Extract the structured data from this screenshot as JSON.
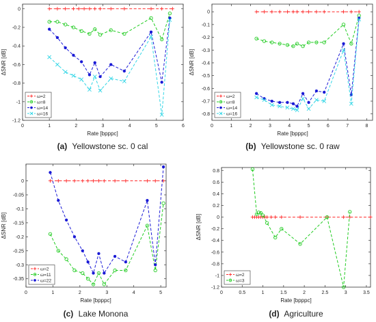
{
  "panels": [
    {
      "caption_label": "(a)",
      "caption_text": "Yellowstone sc. 0 cal",
      "chart_data": {
        "type": "line",
        "xlabel": "Rate [bpppc]",
        "ylabel": "ΔSNR [dB]",
        "xlim": [
          0,
          6
        ],
        "ylim": [
          -1.2,
          0.05
        ],
        "xticks": [
          0,
          1,
          2,
          3,
          4,
          5,
          6
        ],
        "yticks": [
          0,
          -0.2,
          -0.4,
          -0.6,
          -0.8,
          -1,
          -1.2
        ],
        "xtick_labels": [
          "0",
          "1",
          "2",
          "3",
          "4",
          "5",
          "6"
        ],
        "ytick_labels": [
          "0",
          "-0.2",
          "-0.4",
          "-0.6",
          "-0.8",
          "-1",
          "-1.2"
        ],
        "legend_position": "bottom-left",
        "series": [
          {
            "name": "ω=2",
            "color": "#ff2a2a",
            "marker": "plus",
            "x": [
              1.0,
              1.3,
              1.6,
              1.9,
              2.1,
              2.3,
              2.5,
              2.7,
              2.9,
              3.3,
              3.8,
              4.8,
              5.2,
              5.6
            ],
            "y": [
              0,
              0,
              0,
              0,
              0,
              0,
              0,
              0,
              0,
              0,
              0,
              0,
              0,
              0
            ]
          },
          {
            "name": "ω=8",
            "color": "#22cc22",
            "marker": "circle",
            "x": [
              1.0,
              1.3,
              1.6,
              1.9,
              2.2,
              2.5,
              2.7,
              2.9,
              3.3,
              3.8,
              4.8,
              5.2,
              5.5
            ],
            "y": [
              -0.14,
              -0.14,
              -0.17,
              -0.2,
              -0.24,
              -0.27,
              -0.22,
              -0.28,
              -0.23,
              -0.27,
              -0.1,
              -0.33,
              -0.05
            ]
          },
          {
            "name": "ω=14",
            "color": "#1a1ad6",
            "marker": "asterisk",
            "x": [
              1.0,
              1.3,
              1.6,
              1.9,
              2.2,
              2.5,
              2.7,
              2.9,
              3.3,
              3.8,
              4.8,
              5.2,
              5.5
            ],
            "y": [
              -0.22,
              -0.31,
              -0.42,
              -0.5,
              -0.57,
              -0.71,
              -0.58,
              -0.73,
              -0.6,
              -0.67,
              -0.25,
              -0.79,
              -0.1
            ]
          },
          {
            "name": "ω=16",
            "color": "#33d6e6",
            "marker": "cross",
            "x": [
              1.0,
              1.3,
              1.6,
              1.9,
              2.2,
              2.5,
              2.7,
              2.9,
              3.3,
              3.8,
              4.8,
              5.2,
              5.5
            ],
            "y": [
              -0.52,
              -0.6,
              -0.68,
              -0.72,
              -0.76,
              -0.87,
              -0.73,
              -0.88,
              -0.75,
              -0.78,
              -0.3,
              -1.14,
              -0.12
            ]
          }
        ]
      }
    },
    {
      "caption_label": "(b)",
      "caption_text": "Yellowstone sc. 0 raw",
      "chart_data": {
        "type": "line",
        "xlabel": "Rate [bpppc]",
        "ylabel": "ΔSNR [dB]",
        "xlim": [
          0,
          8.3
        ],
        "ylim": [
          -0.85,
          0.06
        ],
        "xticks": [
          0,
          1,
          2,
          3,
          4,
          5,
          6,
          7,
          8
        ],
        "yticks": [
          0,
          -0.1,
          -0.2,
          -0.3,
          -0.4,
          -0.5,
          -0.6,
          -0.7,
          -0.8
        ],
        "xtick_labels": [
          "0",
          "1",
          "2",
          "3",
          "4",
          "5",
          "6",
          "7",
          "8"
        ],
        "ytick_labels": [
          "0",
          "-0.1",
          "-0.2",
          "-0.3",
          "-0.4",
          "-0.5",
          "-0.6",
          "-0.7",
          "-0.8"
        ],
        "legend_position": "bottom-left",
        "series": [
          {
            "name": "ω=2",
            "color": "#ff2a2a",
            "marker": "plus",
            "x": [
              2.3,
              2.7,
              3.1,
              3.5,
              3.9,
              4.2,
              4.4,
              4.7,
              5.0,
              5.4,
              5.8,
              6.8,
              7.2,
              7.6
            ],
            "y": [
              0,
              0,
              0,
              0,
              0,
              0,
              0,
              0,
              0,
              0,
              0,
              0,
              0,
              0
            ]
          },
          {
            "name": "ω=8",
            "color": "#22cc22",
            "marker": "circle",
            "x": [
              2.3,
              2.7,
              3.1,
              3.5,
              3.9,
              4.2,
              4.4,
              4.7,
              5.0,
              5.4,
              5.8,
              6.8,
              7.2,
              7.6
            ],
            "y": [
              -0.21,
              -0.23,
              -0.24,
              -0.25,
              -0.26,
              -0.27,
              -0.25,
              -0.27,
              -0.24,
              -0.24,
              -0.24,
              -0.1,
              -0.25,
              -0.03
            ]
          },
          {
            "name": "ω=14",
            "color": "#1a1ad6",
            "marker": "asterisk",
            "x": [
              2.3,
              2.7,
              3.1,
              3.5,
              3.9,
              4.2,
              4.4,
              4.7,
              5.0,
              5.4,
              5.8,
              6.8,
              7.2,
              7.6
            ],
            "y": [
              -0.64,
              -0.68,
              -0.7,
              -0.71,
              -0.71,
              -0.72,
              -0.74,
              -0.64,
              -0.71,
              -0.62,
              -0.63,
              -0.25,
              -0.65,
              -0.05
            ]
          },
          {
            "name": "ω=16",
            "color": "#33d6e6",
            "marker": "cross",
            "x": [
              2.3,
              2.7,
              3.1,
              3.5,
              3.9,
              4.2,
              4.4,
              4.7,
              5.0,
              5.4,
              5.8,
              6.8,
              7.2,
              7.6
            ],
            "y": [
              -0.67,
              -0.69,
              -0.73,
              -0.74,
              -0.75,
              -0.76,
              -0.77,
              -0.68,
              -0.76,
              -0.69,
              -0.7,
              -0.3,
              -0.72,
              -0.06
            ]
          }
        ]
      }
    },
    {
      "caption_label": "(c)",
      "caption_text": "Lake Monona",
      "chart_data": {
        "type": "line",
        "xlabel": "Rate [bpppc]",
        "ylabel": "ΔSNR [dB]",
        "xlim": [
          0,
          5.2
        ],
        "ylim": [
          -0.38,
          0.06
        ],
        "xticks": [
          0,
          1,
          2,
          3,
          4,
          5
        ],
        "yticks": [
          0,
          -0.05,
          -0.1,
          -0.15,
          -0.2,
          -0.25,
          -0.3,
          -0.35
        ],
        "xtick_labels": [
          "0",
          "1",
          "2",
          "3",
          "4",
          "5"
        ],
        "ytick_labels": [
          "0",
          "-0.05",
          "-0.1",
          "-0.15",
          "-0.2",
          "-0.25",
          "-0.3",
          "-0.35"
        ],
        "legend_position": "bottom-left",
        "series": [
          {
            "name": "ω=2",
            "color": "#ff2a2a",
            "marker": "plus",
            "x": [
              0.9,
              1.2,
              1.5,
              1.8,
              2.1,
              2.3,
              2.5,
              2.7,
              2.9,
              3.3,
              3.7,
              4.5,
              4.8,
              5.1
            ],
            "y": [
              0,
              0,
              0,
              0,
              0,
              0,
              0,
              0,
              0,
              0,
              0,
              0,
              0,
              0
            ]
          },
          {
            "name": "ω=11",
            "color": "#22cc22",
            "marker": "circle",
            "x": [
              0.9,
              1.2,
              1.5,
              1.8,
              2.1,
              2.3,
              2.5,
              2.7,
              2.9,
              3.3,
              3.7,
              4.5,
              4.8,
              5.1
            ],
            "y": [
              -0.19,
              -0.25,
              -0.28,
              -0.32,
              -0.33,
              -0.35,
              -0.37,
              -0.33,
              -0.37,
              -0.32,
              -0.32,
              -0.16,
              -0.32,
              -0.08
            ]
          },
          {
            "name": "ω=22",
            "color": "#1a1ad6",
            "marker": "asterisk",
            "x": [
              0.9,
              1.2,
              1.5,
              1.8,
              2.1,
              2.3,
              2.5,
              2.7,
              2.9,
              3.3,
              3.7,
              4.5,
              4.8,
              5.1
            ],
            "y": [
              0.03,
              -0.07,
              -0.14,
              -0.2,
              -0.25,
              -0.29,
              -0.33,
              -0.26,
              -0.33,
              -0.27,
              -0.29,
              -0.07,
              -0.3,
              0.05
            ]
          }
        ]
      }
    },
    {
      "caption_label": "(d)",
      "caption_text": "Agriculture",
      "chart_data": {
        "type": "line",
        "xlabel": "Rate [bpppc]",
        "ylabel": "ΔSNR [dB]",
        "xlim": [
          0,
          3.6
        ],
        "ylim": [
          -1.2,
          0.85
        ],
        "xticks": [
          0,
          0.5,
          1,
          1.5,
          2,
          2.5,
          3,
          3.5
        ],
        "yticks": [
          0.8,
          0.6,
          0.4,
          0.2,
          0,
          -0.2,
          -0.4,
          -0.6,
          -0.8,
          -1,
          -1.2
        ],
        "xtick_labels": [
          "0",
          "0.5",
          "1",
          "1.5",
          "2",
          "2.5",
          "3",
          "3.5"
        ],
        "ytick_labels": [
          "0.8",
          "0.6",
          "0.4",
          "0.2",
          "0",
          "-0.2",
          "-0.4",
          "-0.6",
          "-0.8",
          "-1",
          "-1.2"
        ],
        "legend_position": "bottom-left",
        "series": [
          {
            "name": "ω=2",
            "color": "#ff2a2a",
            "marker": "plus",
            "x": [
              0.75,
              0.8,
              0.85,
              0.9,
              0.95,
              1.0,
              1.05,
              1.1,
              1.2,
              1.3,
              1.45,
              1.9,
              2.55,
              2.95,
              3.1,
              3.6
            ],
            "y": [
              0,
              0,
              0,
              0,
              0,
              0,
              0,
              0,
              0,
              0,
              0,
              0,
              0,
              0,
              0,
              0
            ]
          },
          {
            "name": "ω=3",
            "color": "#22cc22",
            "marker": "circle",
            "x": [
              0.75,
              0.85,
              0.9,
              0.95,
              1.0,
              1.1,
              1.3,
              1.45,
              1.9,
              2.55,
              2.95,
              3.1
            ],
            "y": [
              0.82,
              0.05,
              0.08,
              0.07,
              0.03,
              -0.1,
              -0.35,
              -0.2,
              -0.46,
              0.0,
              -1.2,
              0.09
            ]
          }
        ]
      }
    }
  ]
}
